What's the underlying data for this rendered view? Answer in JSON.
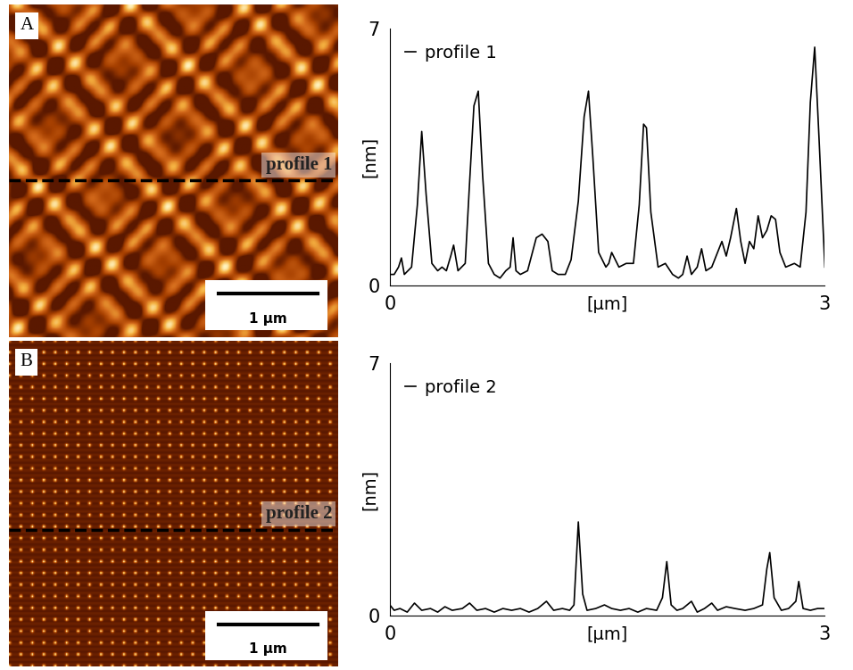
{
  "chart_data": [
    {
      "type": "line",
      "x": [
        0,
        0.03,
        0.06,
        0.08,
        0.1,
        0.15,
        0.19,
        0.22,
        0.25,
        0.29,
        0.33,
        0.36,
        0.39,
        0.42,
        0.44,
        0.47,
        0.52,
        0.55,
        0.58,
        0.61,
        0.64,
        0.68,
        0.72,
        0.76,
        0.8,
        0.83,
        0.85,
        0.87,
        0.9,
        0.95,
        1.01,
        1.05,
        1.09,
        1.12,
        1.16,
        1.21,
        1.25,
        1.3,
        1.34,
        1.37,
        1.4,
        1.44,
        1.49,
        1.51,
        1.53,
        1.58,
        1.63,
        1.68,
        1.72,
        1.75,
        1.77,
        1.8,
        1.85,
        1.9,
        1.95,
        1.99,
        2.02,
        2.05,
        2.08,
        2.12,
        2.15,
        2.18,
        2.22,
        2.26,
        2.29,
        2.32,
        2.35,
        2.39,
        2.42,
        2.45,
        2.48,
        2.51,
        2.54,
        2.57,
        2.6,
        2.63,
        2.66,
        2.69,
        2.73,
        2.79,
        2.83,
        2.87,
        2.9,
        2.93,
        2.96,
        3.0
      ],
      "series": [
        {
          "name": "profile 1",
          "color": "#000000",
          "values": [
            0.3,
            0.3,
            0.5,
            0.75,
            0.3,
            0.5,
            2.2,
            4.2,
            2.5,
            0.6,
            0.4,
            0.5,
            0.4,
            0.8,
            1.1,
            0.4,
            0.6,
            2.8,
            4.9,
            5.3,
            3.0,
            0.6,
            0.3,
            0.2,
            0.4,
            0.5,
            1.3,
            0.4,
            0.3,
            0.4,
            1.3,
            1.4,
            1.2,
            0.4,
            0.3,
            0.3,
            0.7,
            2.3,
            4.6,
            5.3,
            3.5,
            0.9,
            0.5,
            0.6,
            0.9,
            0.5,
            0.6,
            0.6,
            2.2,
            4.4,
            4.3,
            2.0,
            0.5,
            0.6,
            0.3,
            0.2,
            0.3,
            0.8,
            0.3,
            0.5,
            1.0,
            0.4,
            0.5,
            0.9,
            1.2,
            0.8,
            1.3,
            2.1,
            1.2,
            0.6,
            1.2,
            1.0,
            1.9,
            1.3,
            1.5,
            1.9,
            1.8,
            0.9,
            0.5,
            0.6,
            0.5,
            2.0,
            5.0,
            6.5,
            4.0,
            0.5
          ]
        }
      ],
      "xlabel": "[µm]",
      "ylabel": "[nm]",
      "xlim": [
        0,
        3
      ],
      "ylim": [
        0,
        7
      ],
      "xticks": [
        0,
        3
      ],
      "yticks": [
        0,
        7
      ],
      "legend": "upper left"
    },
    {
      "type": "line",
      "x": [
        0,
        0.03,
        0.07,
        0.12,
        0.17,
        0.22,
        0.28,
        0.33,
        0.38,
        0.43,
        0.5,
        0.55,
        0.6,
        0.66,
        0.72,
        0.78,
        0.84,
        0.9,
        0.96,
        1.02,
        1.08,
        1.13,
        1.19,
        1.24,
        1.27,
        1.3,
        1.33,
        1.36,
        1.42,
        1.48,
        1.53,
        1.59,
        1.65,
        1.71,
        1.77,
        1.84,
        1.88,
        1.91,
        1.94,
        1.98,
        2.02,
        2.08,
        2.12,
        2.17,
        2.22,
        2.26,
        2.32,
        2.38,
        2.45,
        2.51,
        2.57,
        2.6,
        2.62,
        2.65,
        2.7,
        2.75,
        2.8,
        2.82,
        2.85,
        2.9,
        2.95,
        3.0
      ],
      "series": [
        {
          "name": "profile 2",
          "color": "#000000",
          "values": [
            0.3,
            0.15,
            0.2,
            0.1,
            0.35,
            0.15,
            0.2,
            0.1,
            0.25,
            0.15,
            0.2,
            0.35,
            0.15,
            0.2,
            0.1,
            0.2,
            0.15,
            0.2,
            0.1,
            0.2,
            0.4,
            0.15,
            0.2,
            0.15,
            0.3,
            2.6,
            0.6,
            0.15,
            0.2,
            0.3,
            0.2,
            0.15,
            0.2,
            0.1,
            0.2,
            0.15,
            0.5,
            1.5,
            0.3,
            0.15,
            0.2,
            0.4,
            0.1,
            0.2,
            0.35,
            0.15,
            0.25,
            0.2,
            0.15,
            0.2,
            0.3,
            1.3,
            1.75,
            0.5,
            0.15,
            0.2,
            0.4,
            0.95,
            0.2,
            0.15,
            0.2,
            0.2
          ]
        }
      ],
      "xlabel": "[µm]",
      "ylabel": "[nm]",
      "xlim": [
        0,
        3
      ],
      "ylim": [
        0,
        7
      ],
      "xticks": [
        0,
        3
      ],
      "yticks": [
        0,
        7
      ],
      "legend": "upper left"
    }
  ],
  "images": [
    {
      "label": "A",
      "line_label": "profile 1",
      "scale_bar": "1 µm"
    },
    {
      "label": "B",
      "line_label": "profile 2",
      "scale_bar": "1 µm"
    }
  ]
}
